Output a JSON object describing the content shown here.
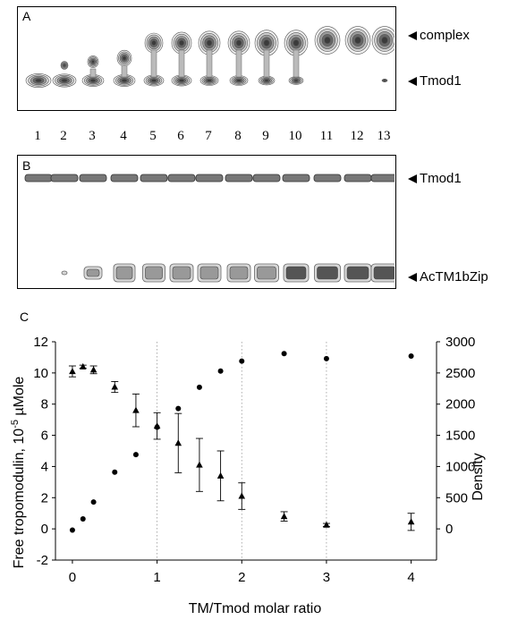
{
  "panel_a": {
    "letter": "A",
    "labels": {
      "complex": "complex",
      "tmod1": "Tmod1"
    },
    "lanes": [
      "1",
      "2",
      "3",
      "4",
      "5",
      "6",
      "7",
      "8",
      "9",
      "10",
      "11",
      "12",
      "13"
    ]
  },
  "panel_b": {
    "letter": "B",
    "labels": {
      "tmod1": "Tmod1",
      "actm": "AcTM1bZip"
    }
  },
  "panel_c": {
    "letter": "C"
  },
  "chart_data": {
    "type": "scatter",
    "xlabel": "TM/Tmod molar ratio",
    "ylabel_left": "Free tropomodulin, 10-5 µMole",
    "ylabel_left_prefix": "Free tropomodulin, 10",
    "ylabel_left_sup": "-5",
    "ylabel_left_unit": " µMole",
    "ylabel_right": "Density",
    "xlim": [
      -0.2,
      4.3
    ],
    "ylim_left": [
      -2,
      12
    ],
    "ylim_right": [
      -500,
      3000
    ],
    "x_ticks": [
      "0",
      "1",
      "2",
      "3",
      "4"
    ],
    "y_left_ticks": [
      "-2",
      "0",
      "2",
      "4",
      "6",
      "8",
      "10",
      "12"
    ],
    "y_right_ticks": [
      "0",
      "500",
      "1000",
      "1500",
      "2000",
      "2500",
      "3000"
    ],
    "vertical_dotted_gridlines_at_x": [
      1,
      2,
      3
    ],
    "series": [
      {
        "marker": "circle",
        "axis": "right",
        "points": [
          [
            0,
            -20
          ],
          [
            0.125,
            160
          ],
          [
            0.25,
            430
          ],
          [
            0.5,
            910
          ],
          [
            0.75,
            1190
          ],
          [
            1,
            1630
          ],
          [
            1.25,
            1930
          ],
          [
            1.5,
            2270
          ],
          [
            1.75,
            2530
          ],
          [
            2,
            2690
          ],
          [
            2.5,
            2810
          ],
          [
            3,
            2730
          ],
          [
            4,
            2770
          ]
        ]
      },
      {
        "marker": "triangle",
        "axis": "left",
        "points": [
          [
            0,
            10.1
          ],
          [
            0.125,
            10.4
          ],
          [
            0.25,
            10.2
          ],
          [
            0.5,
            9.1
          ],
          [
            0.75,
            7.6
          ],
          [
            1,
            6.6
          ],
          [
            1.25,
            5.5
          ],
          [
            1.5,
            4.1
          ],
          [
            1.75,
            3.4
          ],
          [
            2,
            2.1
          ],
          [
            2.5,
            0.8
          ],
          [
            3,
            0.25
          ],
          [
            4,
            0.45
          ]
        ],
        "errors": [
          0.35,
          0.1,
          0.25,
          0.35,
          1.05,
          0.85,
          1.9,
          1.7,
          1.6,
          0.85,
          0.3,
          0.1,
          0.55
        ]
      }
    ]
  }
}
